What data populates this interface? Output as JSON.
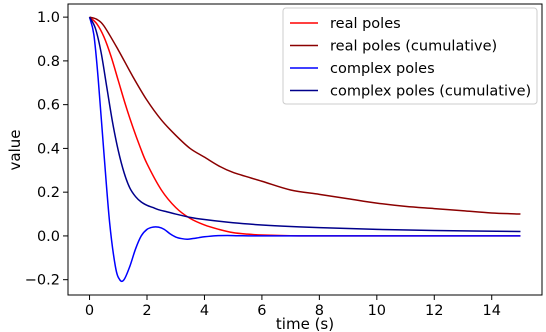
{
  "chart_data": {
    "type": "line",
    "title": "",
    "xlabel": "time (s)",
    "ylabel": "value",
    "xlim": [
      -0.75,
      15.75
    ],
    "ylim": [
      -0.27,
      1.06
    ],
    "xticks": [
      0,
      2,
      4,
      6,
      8,
      10,
      12,
      14
    ],
    "yticks": [
      -0.2,
      0.0,
      0.2,
      0.4,
      0.6,
      0.8,
      1.0
    ],
    "xtick_labels": [
      "0",
      "2",
      "4",
      "6",
      "8",
      "10",
      "12",
      "14"
    ],
    "ytick_labels": [
      "−0.2",
      "0.0",
      "0.2",
      "0.4",
      "0.6",
      "0.8",
      "1.0"
    ],
    "grid": false,
    "legend_position": "upper-right",
    "series": [
      {
        "name": "real poles",
        "color": "#ff0000",
        "x": [
          0,
          0.25,
          0.5,
          0.75,
          1.0,
          1.25,
          1.5,
          1.75,
          2.0,
          2.5,
          3.0,
          3.5,
          4.0,
          4.5,
          5.0,
          5.5,
          6.0,
          7.0,
          8.0,
          10.0,
          12.0,
          15.0
        ],
        "y": [
          1.0,
          0.97,
          0.91,
          0.82,
          0.71,
          0.6,
          0.5,
          0.41,
          0.33,
          0.21,
          0.13,
          0.08,
          0.05,
          0.03,
          0.015,
          0.008,
          0.004,
          0.001,
          0.0,
          0.0,
          0.0,
          0.0
        ]
      },
      {
        "name": "real poles (cumulative)",
        "color": "#8b0000",
        "x": [
          0,
          0.25,
          0.5,
          1.0,
          1.5,
          2.0,
          2.5,
          3.0,
          3.5,
          4.0,
          4.5,
          5.0,
          6.0,
          7.0,
          8.0,
          9.0,
          10.0,
          11.0,
          12.0,
          13.0,
          14.0,
          15.0
        ],
        "y": [
          1.0,
          0.99,
          0.96,
          0.85,
          0.73,
          0.62,
          0.53,
          0.46,
          0.4,
          0.36,
          0.32,
          0.29,
          0.25,
          0.21,
          0.19,
          0.17,
          0.15,
          0.135,
          0.125,
          0.115,
          0.105,
          0.1
        ]
      },
      {
        "name": "complex poles",
        "color": "#0000ff",
        "x": [
          0,
          0.15,
          0.3,
          0.5,
          0.7,
          0.9,
          1.05,
          1.2,
          1.4,
          1.6,
          1.8,
          2.0,
          2.2,
          2.4,
          2.6,
          2.8,
          3.0,
          3.2,
          3.4,
          3.6,
          3.8,
          4.0,
          4.4,
          4.8,
          5.2,
          6.0,
          8.0,
          15.0
        ],
        "y": [
          1.0,
          0.92,
          0.72,
          0.38,
          0.06,
          -0.14,
          -0.2,
          -0.2,
          -0.14,
          -0.06,
          0.0,
          0.03,
          0.04,
          0.04,
          0.03,
          0.01,
          -0.005,
          -0.012,
          -0.015,
          -0.012,
          -0.008,
          -0.004,
          0.001,
          0.002,
          0.001,
          0.0,
          0.0,
          0.0
        ]
      },
      {
        "name": "complex poles (cumulative)",
        "color": "#00008b",
        "x": [
          0,
          0.2,
          0.4,
          0.6,
          0.8,
          1.0,
          1.2,
          1.4,
          1.6,
          1.8,
          2.0,
          2.2,
          2.4,
          2.7,
          3.0,
          3.5,
          4.0,
          5.0,
          6.0,
          7.0,
          8.0,
          10.0,
          12.0,
          15.0
        ],
        "y": [
          1.0,
          0.95,
          0.84,
          0.68,
          0.52,
          0.39,
          0.29,
          0.22,
          0.18,
          0.155,
          0.14,
          0.13,
          0.12,
          0.11,
          0.1,
          0.085,
          0.075,
          0.06,
          0.05,
          0.043,
          0.038,
          0.03,
          0.025,
          0.02
        ]
      }
    ]
  }
}
